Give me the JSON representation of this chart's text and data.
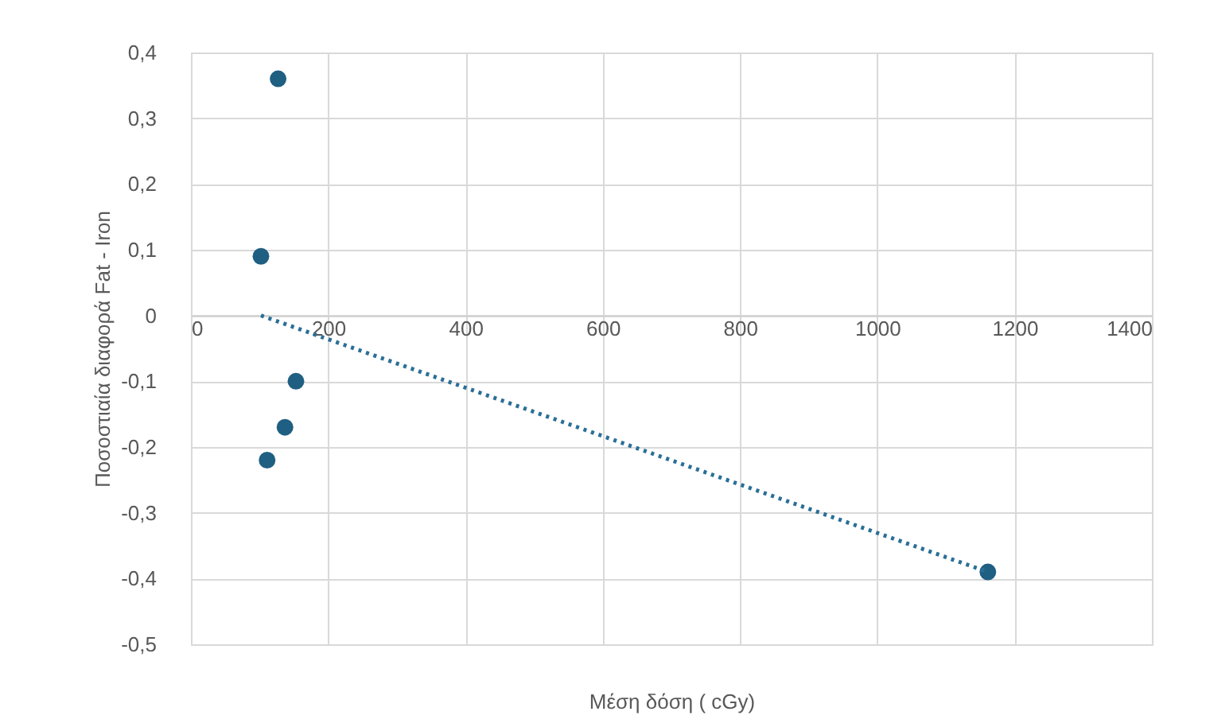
{
  "chart_data": {
    "type": "scatter",
    "xlabel": "Μέση δόση ( cGy)",
    "ylabel": "Ποσοστιαία διαφορά    Fat - Iron",
    "xlim": [
      0,
      1400
    ],
    "xticks": [
      0,
      200,
      400,
      600,
      800,
      1000,
      1200,
      1400
    ],
    "ylim": [
      -0.5,
      0.4
    ],
    "yticks": [
      {
        "value": -0.5,
        "label": "-0,5"
      },
      {
        "value": -0.4,
        "label": "-0,4"
      },
      {
        "value": -0.3,
        "label": "-0,3"
      },
      {
        "value": -0.2,
        "label": "-0,2"
      },
      {
        "value": -0.1,
        "label": "-0,1"
      },
      {
        "value": 0,
        "label": "0"
      },
      {
        "value": 0.1,
        "label": "0,1"
      },
      {
        "value": 0.2,
        "label": "0,2"
      },
      {
        "value": 0.3,
        "label": "0,3"
      },
      {
        "value": 0.4,
        "label": "0,4"
      }
    ],
    "grid": true,
    "series": [
      {
        "marker": "circle",
        "color": "#1f5f82",
        "x": [
          127,
          102,
          153,
          137,
          111,
          1161
        ],
        "values": [
          0.36,
          0.09,
          -0.1,
          -0.17,
          -0.22,
          -0.39
        ]
      },
      {
        "type": "line",
        "marker": "none",
        "color": "#2a6f97",
        "line_style": "dotted",
        "x": [
          102,
          1161
        ],
        "values": [
          0.0,
          -0.39
        ]
      }
    ]
  }
}
